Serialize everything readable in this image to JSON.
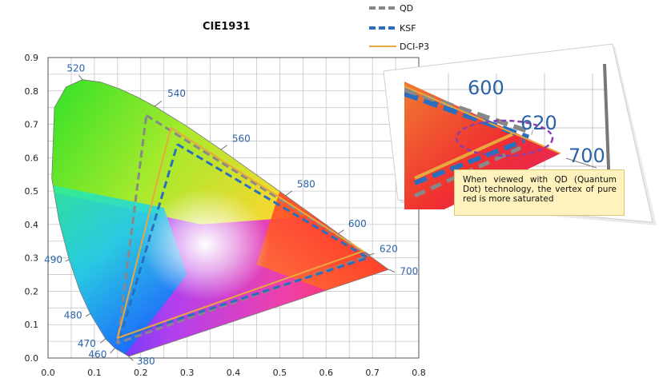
{
  "chart_data": {
    "type": "scatter",
    "title": "CIE1931",
    "xlim": [
      0.0,
      0.8
    ],
    "ylim": [
      0.0,
      0.9
    ],
    "x_ticks": [
      "0.0",
      "0.1",
      "0.2",
      "0.3",
      "0.4",
      "0.5",
      "0.6",
      "0.7",
      "0.8"
    ],
    "y_ticks": [
      "0.0",
      "0.1",
      "0.2",
      "0.3",
      "0.4",
      "0.5",
      "0.6",
      "0.7",
      "0.8",
      "0.9"
    ],
    "grid": true,
    "legend_position": "top-right",
    "series": [
      {
        "name": "QD",
        "style": "dashed",
        "color": "#888888",
        "points": [
          [
            0.212,
            0.727
          ],
          [
            0.693,
            0.307
          ],
          [
            0.15,
            0.045
          ],
          [
            0.212,
            0.727
          ]
        ]
      },
      {
        "name": "KSF",
        "style": "dashed",
        "color": "#2a6fbf",
        "points": [
          [
            0.279,
            0.64
          ],
          [
            0.69,
            0.3
          ],
          [
            0.155,
            0.06
          ],
          [
            0.279,
            0.64
          ]
        ]
      },
      {
        "name": "DCI-P3",
        "style": "solid",
        "color": "#e8a840",
        "points": [
          [
            0.265,
            0.69
          ],
          [
            0.68,
            0.32
          ],
          [
            0.15,
            0.06
          ],
          [
            0.265,
            0.69
          ]
        ]
      }
    ],
    "spectral_locus_labels": [
      {
        "text": "520",
        "x": 0.074,
        "y": 0.834
      },
      {
        "text": "540",
        "x": 0.23,
        "y": 0.754
      },
      {
        "text": "560",
        "x": 0.373,
        "y": 0.624
      },
      {
        "text": "580",
        "x": 0.513,
        "y": 0.487
      },
      {
        "text": "600",
        "x": 0.627,
        "y": 0.373
      },
      {
        "text": "620",
        "x": 0.691,
        "y": 0.308
      },
      {
        "text": "700",
        "x": 0.735,
        "y": 0.265
      },
      {
        "text": "490",
        "x": 0.045,
        "y": 0.295
      },
      {
        "text": "480",
        "x": 0.091,
        "y": 0.133
      },
      {
        "text": "470",
        "x": 0.124,
        "y": 0.058
      },
      {
        "text": "460",
        "x": 0.144,
        "y": 0.03
      },
      {
        "text": "380",
        "x": 0.174,
        "y": 0.005
      }
    ],
    "inset": {
      "labels": [
        "600",
        "620",
        "700"
      ],
      "annotation": "When viewed with QD (Quantum Dot) technology, the vertex of pure red is more saturated"
    }
  },
  "colors": {
    "qd": "#888888",
    "ksf": "#2a6fbf",
    "dci": "#e8a840",
    "grid": "#c8c8c8",
    "label_blue": "#2a63a8",
    "highlight_circle": "#8a3fb0",
    "note_bg": "#fff2bd"
  }
}
